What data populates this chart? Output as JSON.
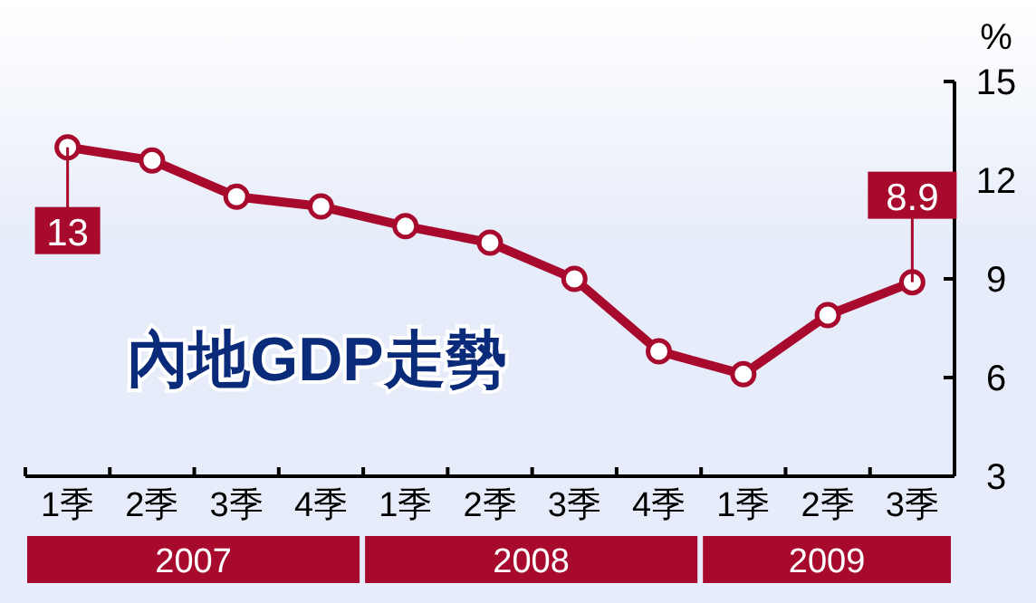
{
  "chart_data": {
    "type": "line",
    "title": "內地GDP走勢",
    "ylabel": "%",
    "categories": [
      "1季",
      "2季",
      "3季",
      "4季",
      "1季",
      "2季",
      "3季",
      "4季",
      "1季",
      "2季",
      "3季"
    ],
    "series": [
      {
        "color": "#a80a2e",
        "values": [
          13,
          12.6,
          11.5,
          11.2,
          10.6,
          10.1,
          9.0,
          6.8,
          6.1,
          7.9,
          8.9
        ],
        "value_labels": [
          "13",
          null,
          null,
          null,
          null,
          null,
          null,
          null,
          null,
          null,
          "8.9"
        ]
      }
    ],
    "ylim": [
      3,
      15
    ],
    "yticks": [
      3,
      6,
      9,
      12,
      15
    ],
    "grid": false,
    "marker": "circle",
    "line_style": "solid",
    "annotations": [
      "2007",
      "2008",
      "2009"
    ]
  }
}
